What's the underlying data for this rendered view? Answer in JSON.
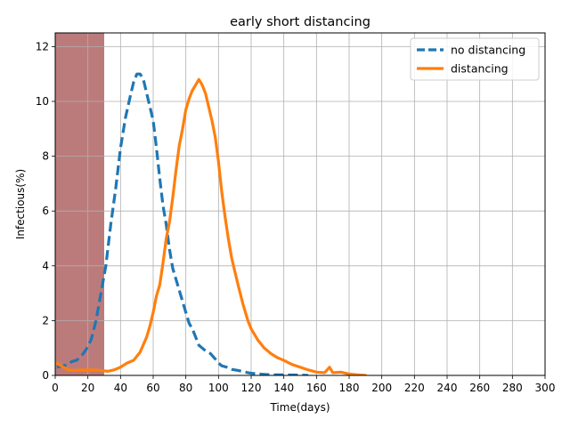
{
  "chart_data": {
    "type": "line",
    "title": "early short distancing",
    "xlabel": "Time(days)",
    "ylabel": "Infectious(%)",
    "xlim": [
      0,
      300
    ],
    "ylim": [
      0,
      12.5
    ],
    "xticks": [
      0,
      20,
      40,
      60,
      80,
      100,
      120,
      140,
      160,
      180,
      200,
      220,
      240,
      260,
      280,
      300
    ],
    "yticks": [
      0,
      2,
      4,
      6,
      8,
      10,
      12
    ],
    "grid": true,
    "legend_position": "top-right",
    "shaded_region": {
      "x_start": 0,
      "x_end": 30,
      "color": "#bc7b7b"
    },
    "series": [
      {
        "name": "no distancing",
        "color": "#1f77b4",
        "style": "dashed",
        "x": [
          1,
          5,
          8,
          10,
          13,
          16,
          19,
          22,
          25,
          28,
          31,
          34,
          37,
          40,
          43,
          46,
          48,
          50,
          52,
          54,
          56,
          58,
          60,
          62,
          64,
          66,
          68,
          70,
          72,
          74,
          76,
          78,
          80,
          82,
          84,
          86,
          88,
          90,
          92,
          95,
          98,
          100,
          102,
          105,
          108,
          110,
          112,
          115,
          118,
          120,
          125,
          130,
          135,
          140,
          150,
          155
        ],
        "y": [
          0.3,
          0.35,
          0.4,
          0.5,
          0.55,
          0.7,
          0.95,
          1.3,
          2.0,
          3.0,
          4.0,
          5.5,
          6.8,
          8.3,
          9.4,
          10.2,
          10.7,
          11.0,
          11.0,
          10.8,
          10.3,
          9.8,
          9.3,
          8.3,
          7.2,
          6.2,
          5.5,
          4.6,
          3.9,
          3.5,
          3.1,
          2.7,
          2.3,
          1.9,
          1.7,
          1.4,
          1.1,
          1.0,
          0.9,
          0.8,
          0.6,
          0.45,
          0.35,
          0.3,
          0.22,
          0.2,
          0.18,
          0.14,
          0.1,
          0.08,
          0.05,
          0.03,
          0.02,
          0.02,
          0.01,
          0.0
        ]
      },
      {
        "name": "distancing",
        "color": "#ff7f0e",
        "style": "solid",
        "x": [
          1,
          5,
          8,
          12,
          16,
          20,
          24,
          28,
          32,
          36,
          40,
          44,
          48,
          52,
          56,
          58,
          60,
          62,
          64,
          66,
          68,
          70,
          72,
          74,
          76,
          78,
          80,
          82,
          84,
          86,
          88,
          90,
          92,
          94,
          96,
          98,
          100,
          102,
          104,
          106,
          108,
          110,
          112,
          115,
          118,
          120,
          124,
          128,
          132,
          136,
          140,
          145,
          150,
          155,
          160,
          165,
          168,
          170,
          175,
          180,
          185,
          190
        ],
        "y": [
          0.45,
          0.3,
          0.2,
          0.18,
          0.2,
          0.2,
          0.2,
          0.18,
          0.15,
          0.2,
          0.3,
          0.45,
          0.55,
          0.85,
          1.4,
          1.8,
          2.3,
          2.9,
          3.3,
          4.1,
          5.0,
          5.6,
          6.5,
          7.5,
          8.4,
          9.0,
          9.7,
          10.1,
          10.4,
          10.6,
          10.8,
          10.6,
          10.3,
          9.8,
          9.3,
          8.7,
          7.8,
          6.7,
          5.8,
          5.0,
          4.3,
          3.8,
          3.3,
          2.6,
          2.0,
          1.7,
          1.3,
          1.0,
          0.8,
          0.65,
          0.55,
          0.4,
          0.3,
          0.2,
          0.12,
          0.1,
          0.3,
          0.1,
          0.12,
          0.05,
          0.02,
          0.0
        ]
      }
    ]
  }
}
